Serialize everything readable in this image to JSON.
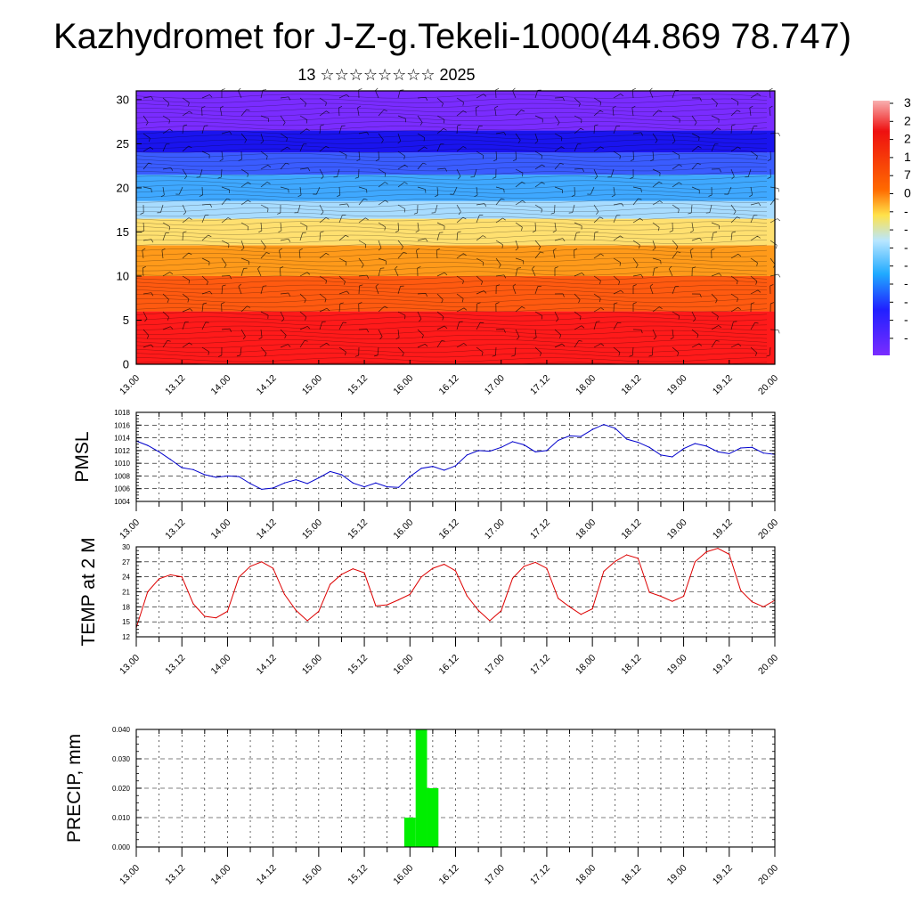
{
  "title": "Kazhydromet for J-Z-g.Tekeli-1000(44.869 78.747)",
  "subtitle": "13 ☆☆☆☆☆☆☆☆ 2025",
  "colors": {
    "pmsl_line": "#0000cc",
    "temp_line": "#dd0000",
    "precip_bar": "#00ee00"
  },
  "chart_data": [
    {
      "type": "heatmap",
      "title": "",
      "x_tick_labels": [
        "13.00",
        "13.12",
        "14.00",
        "14.12",
        "15.00",
        "15.12",
        "16.00",
        "16.12",
        "17.00",
        "17.12",
        "18.00",
        "18.12",
        "19.00",
        "19.12",
        "20.00"
      ],
      "y_tick_labels": [
        "0",
        "5",
        "10",
        "15",
        "20",
        "25",
        "30"
      ],
      "ylim": [
        0,
        31
      ],
      "colorbar_labels": [
        "3",
        "2",
        "2",
        "1",
        "7",
        "0",
        "-",
        "-",
        "-",
        "-",
        "-",
        "-",
        "-",
        "-"
      ],
      "bands": [
        {
          "y": [
            0,
            6
          ],
          "color": "#ff1a1a"
        },
        {
          "y": [
            6,
            10
          ],
          "color": "#ff5a10"
        },
        {
          "y": [
            10,
            13.5
          ],
          "color": "#ff9a1a"
        },
        {
          "y": [
            13.5,
            16.5
          ],
          "color": "#ffe070"
        },
        {
          "y": [
            16.5,
            18.5
          ],
          "color": "#a8dcff"
        },
        {
          "y": [
            18.5,
            21.5
          ],
          "color": "#3fa8ff"
        },
        {
          "y": [
            21.5,
            24
          ],
          "color": "#3a5cff"
        },
        {
          "y": [
            24,
            26.5
          ],
          "color": "#1a14ee"
        },
        {
          "y": [
            26.5,
            31
          ],
          "color": "#7a2cff"
        }
      ]
    },
    {
      "type": "line",
      "ylabel": "PMSL",
      "x_tick_labels": [
        "13.00",
        "13.12",
        "14.00",
        "14.12",
        "15.00",
        "15.12",
        "16.00",
        "16.12",
        "17.00",
        "17.12",
        "18.00",
        "18.12",
        "19.00",
        "19.12",
        "20.00"
      ],
      "y_tick_labels": [
        "1004",
        "1006",
        "1008",
        "1010",
        "1012",
        "1014",
        "1016",
        "1018"
      ],
      "ylim": [
        1004,
        1018
      ],
      "grid": true,
      "x": [
        0,
        3,
        6,
        9,
        12,
        15,
        18,
        21,
        24,
        27,
        30,
        33,
        36,
        39,
        42,
        45,
        48,
        51,
        54,
        57,
        60,
        63,
        66,
        69,
        72,
        75,
        78,
        81,
        84,
        87,
        90,
        93,
        96,
        99,
        102,
        105,
        108,
        111,
        114,
        117,
        120,
        123,
        126,
        129,
        132,
        135,
        138,
        141,
        144,
        147,
        150,
        153,
        156,
        159,
        162,
        165,
        168
      ],
      "values": [
        1013.5,
        1012.8,
        1011.8,
        1010.6,
        1009.3,
        1009.0,
        1008.2,
        1007.8,
        1008.0,
        1007.9,
        1006.8,
        1005.9,
        1006.1,
        1006.9,
        1007.4,
        1006.8,
        1007.7,
        1008.7,
        1008.2,
        1006.9,
        1006.3,
        1006.9,
        1006.3,
        1006.2,
        1007.9,
        1009.2,
        1009.5,
        1008.9,
        1009.6,
        1011.3,
        1012.0,
        1011.9,
        1012.5,
        1013.4,
        1012.9,
        1011.8,
        1012.0,
        1013.6,
        1014.3,
        1014.2,
        1015.3,
        1016.1,
        1015.5,
        1013.8,
        1013.3,
        1012.5,
        1011.3,
        1011.0,
        1012.3,
        1013.1,
        1012.7,
        1011.8,
        1011.5,
        1012.4,
        1012.5,
        1011.6,
        1011.4
      ]
    },
    {
      "type": "line",
      "ylabel": "TEMP at 2 M",
      "x_tick_labels": [
        "13.00",
        "13.12",
        "14.00",
        "14.12",
        "15.00",
        "15.12",
        "16.00",
        "16.12",
        "17.00",
        "17.12",
        "18.00",
        "18.12",
        "19.00",
        "19.12",
        "20.00"
      ],
      "y_tick_labels": [
        "12",
        "15",
        "18",
        "21",
        "24",
        "27",
        "30"
      ],
      "ylim": [
        12,
        30
      ],
      "grid": true,
      "x": [
        0,
        3,
        6,
        9,
        12,
        15,
        18,
        21,
        24,
        27,
        30,
        33,
        36,
        39,
        42,
        45,
        48,
        51,
        54,
        57,
        60,
        63,
        66,
        69,
        72,
        75,
        78,
        81,
        84,
        87,
        90,
        93,
        96,
        99,
        102,
        105,
        108,
        111,
        114,
        117,
        120,
        123,
        126,
        129,
        132,
        135,
        138,
        141,
        144,
        147,
        150,
        153,
        156,
        159,
        162,
        165,
        168
      ],
      "values": [
        13.8,
        21.0,
        23.6,
        24.4,
        24.0,
        18.6,
        16.1,
        15.8,
        17.1,
        23.9,
        26.1,
        27.0,
        25.7,
        20.5,
        17.3,
        15.2,
        17.1,
        22.5,
        24.5,
        25.6,
        24.8,
        18.2,
        18.4,
        19.4,
        20.5,
        24.0,
        25.7,
        26.5,
        25.2,
        20.2,
        17.3,
        15.2,
        17.2,
        23.7,
        26.1,
        26.9,
        25.7,
        19.7,
        18.0,
        16.5,
        17.6,
        25.1,
        27.1,
        28.4,
        27.7,
        20.9,
        20.1,
        19.1,
        20.1,
        27.0,
        29.0,
        29.7,
        28.5,
        21.3,
        19.0,
        18.0,
        19.3
      ]
    },
    {
      "type": "bar",
      "ylabel": "PRECIP, mm",
      "x_tick_labels": [
        "13.00",
        "13.12",
        "14.00",
        "14.12",
        "15.00",
        "15.12",
        "16.00",
        "16.12",
        "17.00",
        "17.12",
        "18.00",
        "18.12",
        "19.00",
        "19.12",
        "20.00"
      ],
      "y_tick_labels": [
        "0.000",
        "0.010",
        "0.020",
        "0.030",
        "0.040"
      ],
      "ylim": [
        0,
        0.04
      ],
      "grid": true,
      "x": [
        72,
        75,
        78
      ],
      "values": [
        0.01,
        0.04,
        0.02
      ]
    }
  ]
}
